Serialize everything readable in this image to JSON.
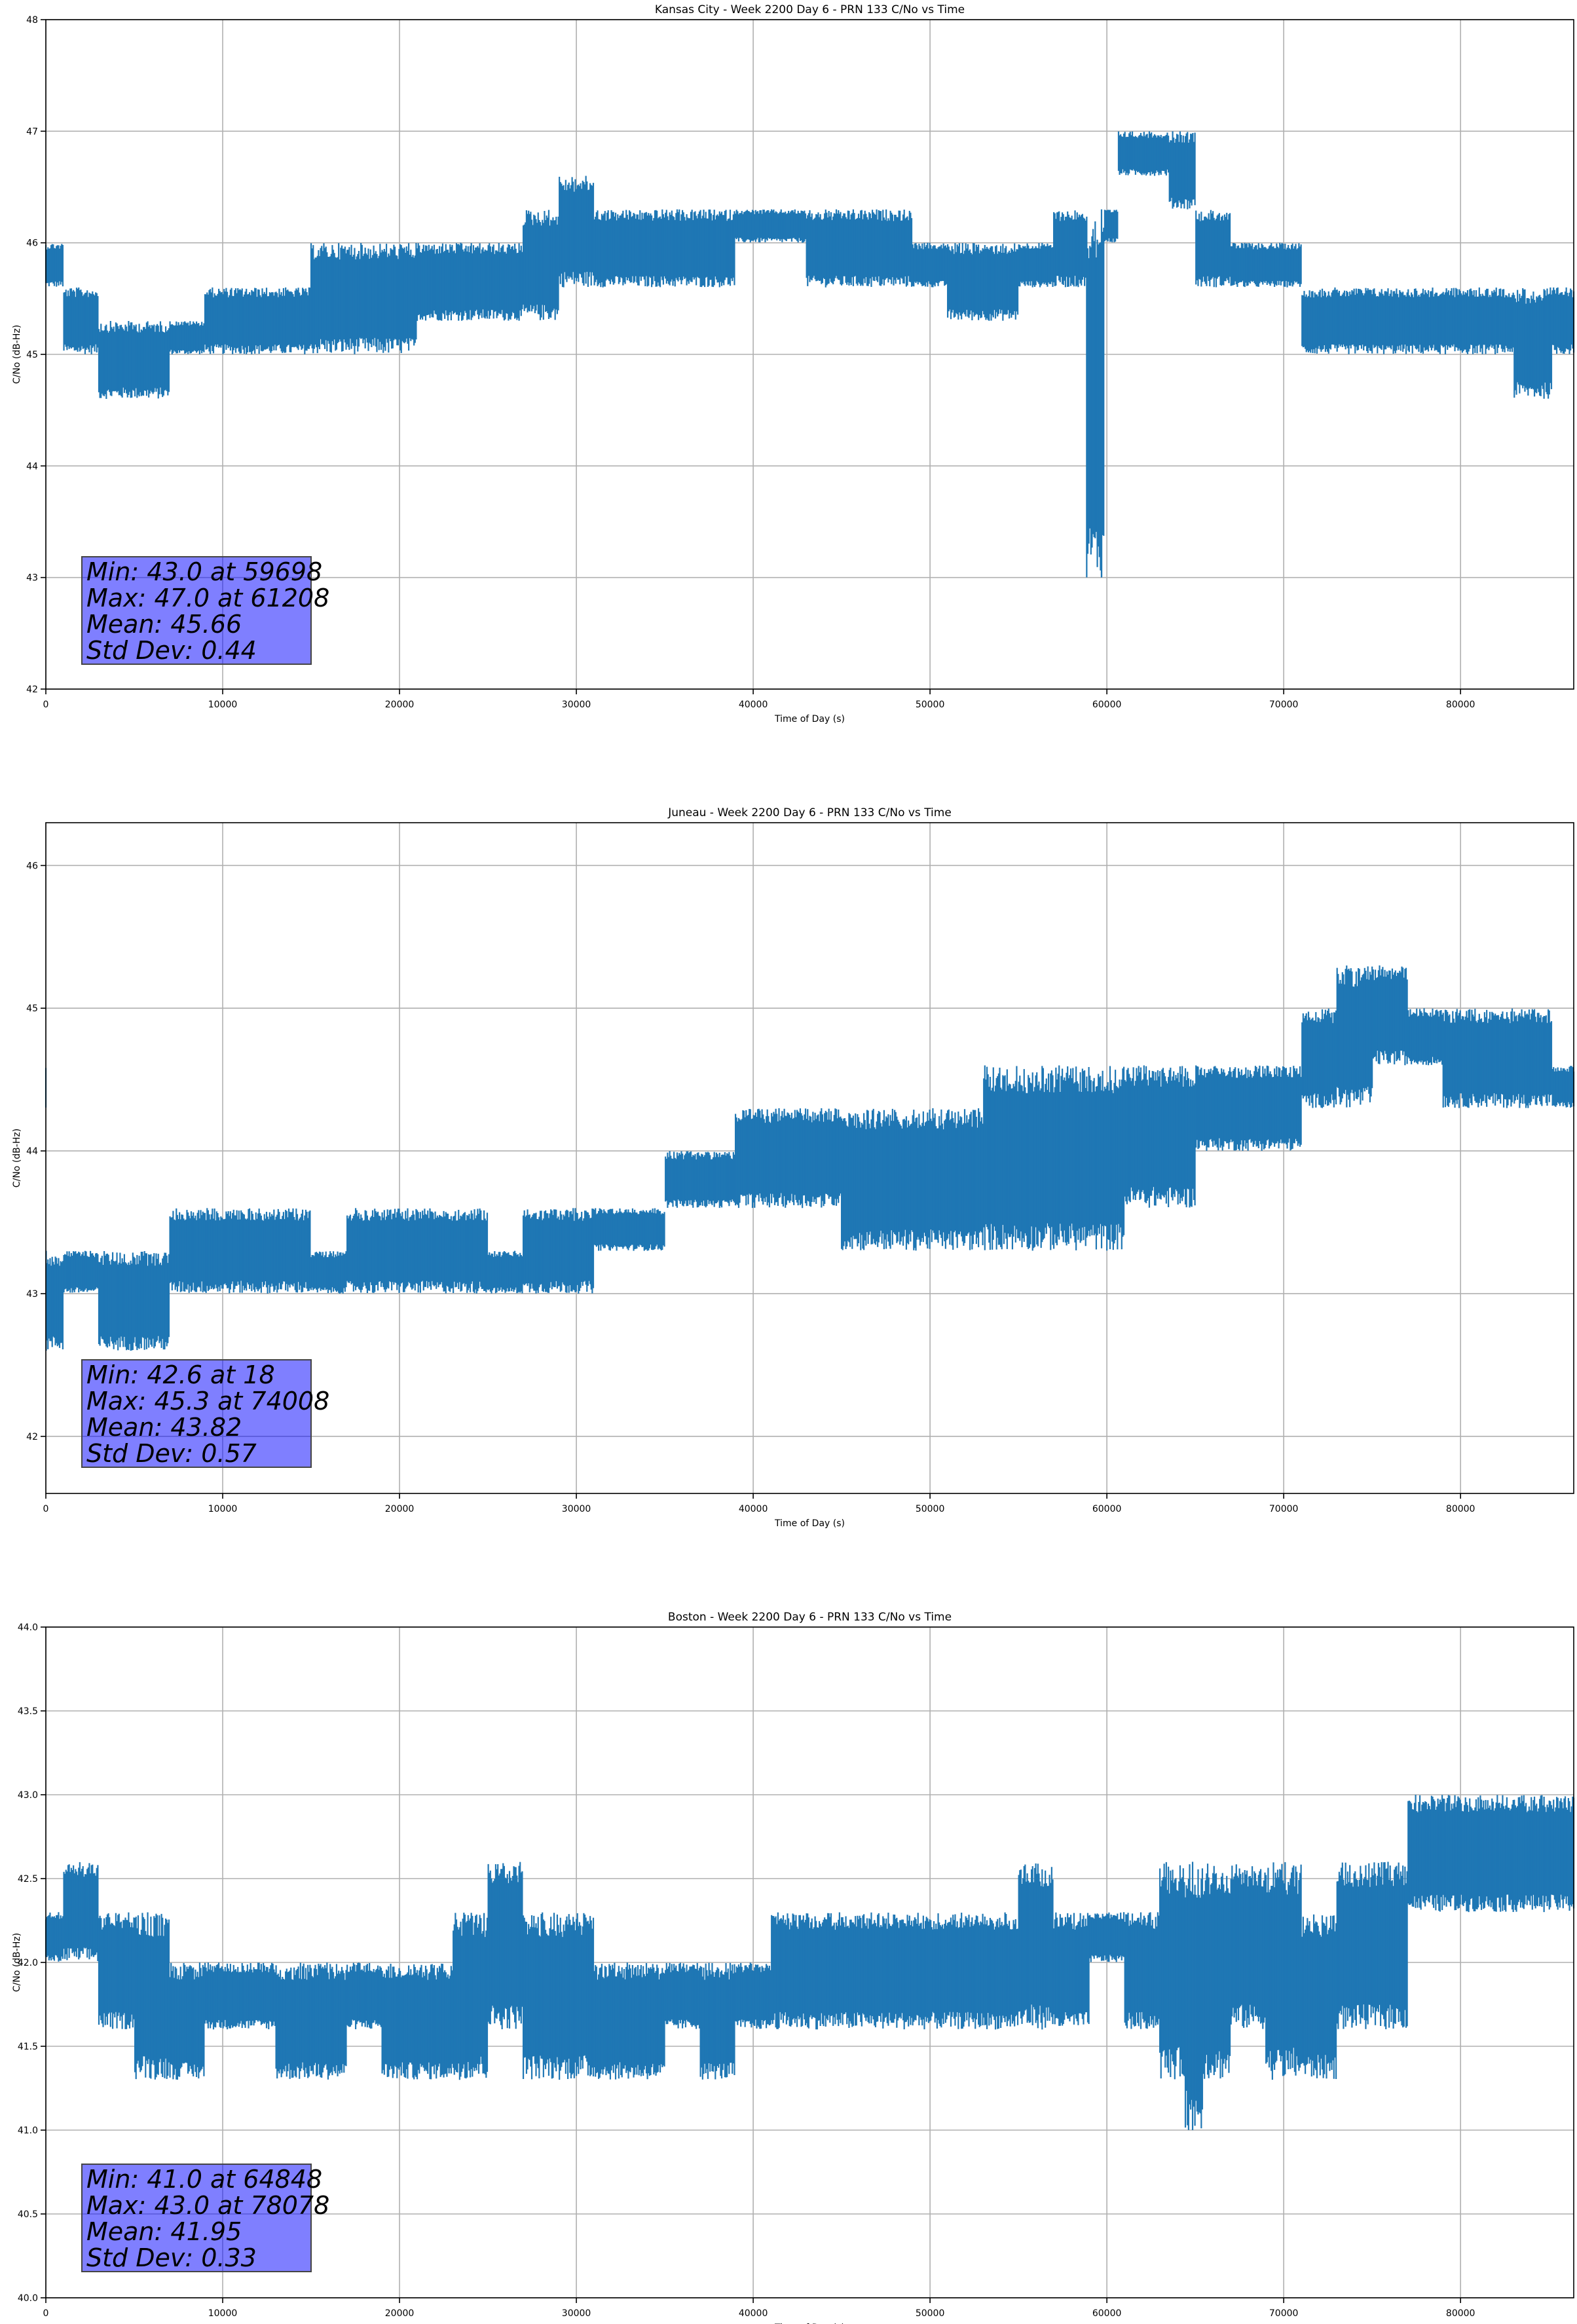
{
  "chart_data": [
    {
      "type": "line",
      "title": "Kansas City - Week 2200 Day 6 - PRN 133 C/No vs Time",
      "xlabel": "Time of Day (s)",
      "ylabel": "C/No (dB-Hz)",
      "xlim": [
        0,
        86400
      ],
      "ylim": [
        42,
        48
      ],
      "xticks": [
        0,
        10000,
        20000,
        30000,
        40000,
        50000,
        60000,
        70000,
        80000
      ],
      "yticks": [
        42,
        43,
        44,
        45,
        46,
        47,
        48
      ],
      "ytick_decimals": 0,
      "grid": true,
      "color": "#1f77b4",
      "series": [
        {
          "x": [
            0,
            2000,
            4000,
            6000,
            8000,
            10000,
            12000,
            14000,
            16000,
            18000,
            20000,
            22000,
            24000,
            26000,
            28000,
            30000,
            32000,
            34000,
            36000,
            38000,
            40000,
            42000,
            44000,
            46000,
            48000,
            50000,
            52000,
            54000,
            56000,
            58000,
            59698,
            60000,
            61208,
            62000,
            63000,
            64000,
            66000,
            68000,
            70000,
            72000,
            74000,
            76000,
            78000,
            80000,
            82000,
            84000,
            86400
          ],
          "lo": [
            45.6,
            45.0,
            44.6,
            44.6,
            45.0,
            45.0,
            45.0,
            45.0,
            45.0,
            45.0,
            45.0,
            45.3,
            45.3,
            45.3,
            45.3,
            45.6,
            45.6,
            45.6,
            45.6,
            45.6,
            46.0,
            46.0,
            45.6,
            45.6,
            45.6,
            45.6,
            45.3,
            45.3,
            45.6,
            45.6,
            43.0,
            46.0,
            46.6,
            46.6,
            46.6,
            46.3,
            45.6,
            45.6,
            45.6,
            45.0,
            45.0,
            45.0,
            45.0,
            45.0,
            45.0,
            44.6,
            45.0
          ],
          "hi": [
            46.0,
            45.6,
            45.3,
            45.3,
            45.3,
            45.6,
            45.6,
            45.6,
            46.0,
            46.0,
            46.0,
            46.0,
            46.0,
            46.0,
            46.3,
            46.6,
            46.3,
            46.3,
            46.3,
            46.3,
            46.3,
            46.3,
            46.3,
            46.3,
            46.3,
            46.0,
            46.0,
            46.0,
            46.0,
            46.3,
            46.3,
            46.3,
            47.0,
            47.0,
            47.0,
            47.0,
            46.3,
            46.0,
            46.0,
            45.6,
            45.6,
            45.6,
            45.6,
            45.6,
            45.6,
            45.6,
            45.6
          ]
        }
      ],
      "stats": [
        "Min: 43.0 at 59698",
        "Max: 47.0 at 61208",
        "Mean: 45.66",
        "Std Dev: 0.44"
      ]
    },
    {
      "type": "line",
      "title": "Juneau - Week 2200 Day 6 - PRN 133 C/No vs Time",
      "xlabel": "Time of Day (s)",
      "ylabel": "C/No (dB-Hz)",
      "xlim": [
        0,
        86400
      ],
      "ylim": [
        41.6,
        46.3
      ],
      "xticks": [
        0,
        10000,
        20000,
        30000,
        40000,
        50000,
        60000,
        70000,
        80000
      ],
      "yticks": [
        42,
        43,
        44,
        45,
        46
      ],
      "ytick_decimals": 0,
      "grid": true,
      "color": "#1f77b4",
      "series": [
        {
          "x": [
            18,
            2000,
            4000,
            6000,
            8000,
            10000,
            12000,
            14000,
            16000,
            18000,
            20000,
            22000,
            24000,
            26000,
            28000,
            30000,
            32000,
            34000,
            36000,
            38000,
            40000,
            42000,
            44000,
            46000,
            48000,
            50000,
            52000,
            54000,
            56000,
            58000,
            60000,
            62000,
            64000,
            66000,
            68000,
            70000,
            72000,
            74008,
            76000,
            78000,
            80000,
            82000,
            84000,
            86400
          ],
          "lo": [
            42.6,
            43.0,
            42.6,
            42.6,
            43.0,
            43.0,
            43.0,
            43.0,
            43.0,
            43.0,
            43.0,
            43.0,
            43.0,
            43.0,
            43.0,
            43.0,
            43.3,
            43.3,
            43.6,
            43.6,
            43.6,
            43.6,
            43.6,
            43.3,
            43.3,
            43.3,
            43.3,
            43.3,
            43.3,
            43.3,
            43.3,
            43.6,
            43.6,
            44.0,
            44.0,
            44.0,
            44.3,
            44.3,
            44.6,
            44.6,
            44.3,
            44.3,
            44.3,
            44.3
          ],
          "hi": [
            43.3,
            43.3,
            43.3,
            43.3,
            43.6,
            43.6,
            43.6,
            43.6,
            43.3,
            43.6,
            43.6,
            43.6,
            43.6,
            43.3,
            43.6,
            43.6,
            43.6,
            43.6,
            44.0,
            44.0,
            44.3,
            44.3,
            44.3,
            44.3,
            44.3,
            44.3,
            44.3,
            44.6,
            44.6,
            44.6,
            44.6,
            44.6,
            44.6,
            44.6,
            44.6,
            44.6,
            45.0,
            45.3,
            45.3,
            45.0,
            45.0,
            45.0,
            45.0,
            44.6
          ]
        }
      ],
      "stats": [
        "Min: 42.6 at 18",
        "Max: 45.3 at 74008",
        "Mean: 43.82",
        "Std Dev: 0.57"
      ]
    },
    {
      "type": "line",
      "title": "Boston - Week 2200 Day 6 - PRN 133 C/No vs Time",
      "xlabel": "Time of Day (s)",
      "ylabel": "C/No (dB-Hz)",
      "xlim": [
        0,
        86400
      ],
      "ylim": [
        40,
        44
      ],
      "xticks": [
        0,
        10000,
        20000,
        30000,
        40000,
        50000,
        60000,
        70000,
        80000
      ],
      "yticks": [
        40.0,
        40.5,
        41.0,
        41.5,
        42.0,
        42.5,
        43.0,
        43.5,
        44.0
      ],
      "ytick_decimals": 1,
      "grid": true,
      "color": "#1f77b4",
      "series": [
        {
          "x": [
            0,
            2000,
            4000,
            6000,
            8000,
            10000,
            12000,
            14000,
            16000,
            18000,
            20000,
            22000,
            24000,
            26000,
            28000,
            30000,
            32000,
            34000,
            36000,
            38000,
            40000,
            42000,
            44000,
            46000,
            48000,
            50000,
            52000,
            54000,
            56000,
            58000,
            60000,
            62000,
            64000,
            64848,
            66000,
            68000,
            70000,
            72000,
            74000,
            76000,
            78078,
            80000,
            82000,
            84000,
            86400
          ],
          "lo": [
            42.0,
            42.0,
            41.6,
            41.3,
            41.3,
            41.6,
            41.6,
            41.3,
            41.3,
            41.6,
            41.3,
            41.3,
            41.3,
            41.6,
            41.3,
            41.3,
            41.3,
            41.3,
            41.6,
            41.3,
            41.6,
            41.6,
            41.6,
            41.6,
            41.6,
            41.6,
            41.6,
            41.6,
            41.6,
            41.6,
            42.0,
            41.6,
            41.3,
            41.0,
            41.3,
            41.6,
            41.3,
            41.3,
            41.6,
            41.6,
            42.3,
            42.3,
            42.3,
            42.3,
            42.3
          ],
          "hi": [
            42.3,
            42.6,
            42.3,
            42.3,
            42.0,
            42.0,
            42.0,
            42.0,
            42.0,
            42.0,
            42.0,
            42.0,
            42.3,
            42.6,
            42.3,
            42.3,
            42.0,
            42.0,
            42.0,
            42.0,
            42.0,
            42.3,
            42.3,
            42.3,
            42.3,
            42.3,
            42.3,
            42.3,
            42.6,
            42.3,
            42.3,
            42.3,
            42.6,
            42.6,
            42.6,
            42.6,
            42.6,
            42.3,
            42.6,
            42.6,
            43.0,
            43.0,
            43.0,
            43.0,
            43.0
          ]
        }
      ],
      "stats": [
        "Min: 41.0 at 64848",
        "Max: 43.0 at 78078",
        "Mean: 41.95",
        "Std Dev: 0.33"
      ]
    }
  ]
}
